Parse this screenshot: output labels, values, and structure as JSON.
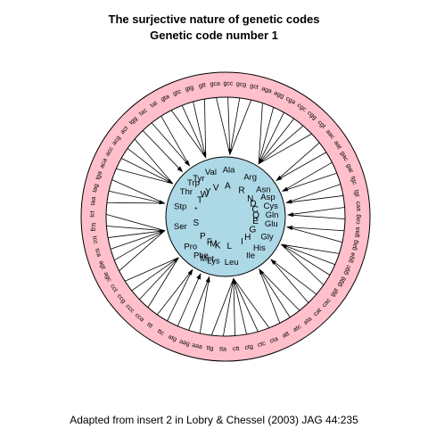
{
  "title": "The surjective nature of genetic codes",
  "subtitle": "Genetic code number 1",
  "caption": "Adapted from insert 2 in Lobry & Chessel (2003) JAG 44:235",
  "colors": {
    "outer_ring": "#ffc0cb",
    "inner_disc": "#add8e6",
    "line": "#000000"
  },
  "codons": [
    "gca",
    "gcc",
    "gcg",
    "gct",
    "aga",
    "agg",
    "cga",
    "cgc",
    "cgg",
    "cgt",
    "aac",
    "aat",
    "gac",
    "gat",
    "tgc",
    "tgt",
    "caa",
    "cag",
    "gaa",
    "gag",
    "gga",
    "ggc",
    "ggg",
    "ggt",
    "cac",
    "cat",
    "ata",
    "atc",
    "att",
    "cta",
    "ctc",
    "ctg",
    "ctt",
    "tta",
    "ttg",
    "aaa",
    "aag",
    "atg",
    "ttc",
    "ttt",
    "cca",
    "ccc",
    "ccg",
    "cct",
    "agc",
    "agt",
    "tca",
    "tcc",
    "tcg",
    "tct",
    "taa",
    "tag",
    "tga",
    "aca",
    "acc",
    "acg",
    "act",
    "tgg",
    "tac",
    "tat",
    "gta",
    "gtc",
    "gtg",
    "gtt"
  ],
  "amino_acids": [
    {
      "code": "Ala",
      "letter": "A",
      "codons": [
        "gca",
        "gcc",
        "gcg",
        "gct"
      ]
    },
    {
      "code": "Arg",
      "letter": "R",
      "codons": [
        "aga",
        "agg",
        "cga",
        "cgc",
        "cgg",
        "cgt"
      ]
    },
    {
      "code": "Asn",
      "letter": "N",
      "codons": [
        "aac",
        "aat"
      ]
    },
    {
      "code": "Asp",
      "letter": "D",
      "codons": [
        "gac",
        "gat"
      ]
    },
    {
      "code": "Cys",
      "letter": "C",
      "codons": [
        "tgc",
        "tgt"
      ]
    },
    {
      "code": "Gln",
      "letter": "Q",
      "codons": [
        "caa",
        "cag"
      ]
    },
    {
      "code": "Glu",
      "letter": "E",
      "codons": [
        "gaa",
        "gag"
      ]
    },
    {
      "code": "Gly",
      "letter": "G",
      "codons": [
        "gga",
        "ggc",
        "ggg",
        "ggt"
      ]
    },
    {
      "code": "His",
      "letter": "H",
      "codons": [
        "cac",
        "cat"
      ]
    },
    {
      "code": "Ile",
      "letter": "I",
      "codons": [
        "ata",
        "atc",
        "att"
      ]
    },
    {
      "code": "Leu",
      "letter": "L",
      "codons": [
        "cta",
        "ctc",
        "ctg",
        "ctt",
        "tta",
        "ttg"
      ]
    },
    {
      "code": "Lys",
      "letter": "K",
      "codons": [
        "aaa",
        "aag"
      ]
    },
    {
      "code": "Met",
      "letter": "M",
      "codons": [
        "atg"
      ]
    },
    {
      "code": "Phe",
      "letter": "F",
      "codons": [
        "ttc",
        "ttt"
      ]
    },
    {
      "code": "Pro",
      "letter": "P",
      "codons": [
        "cca",
        "ccc",
        "ccg",
        "cct"
      ]
    },
    {
      "code": "Ser",
      "letter": "S",
      "codons": [
        "agc",
        "agt",
        "tca",
        "tcc",
        "tcg",
        "tct"
      ]
    },
    {
      "code": "Stp",
      "letter": "*",
      "codons": [
        "taa",
        "tag",
        "tga"
      ]
    },
    {
      "code": "Thr",
      "letter": "T",
      "codons": [
        "aca",
        "acc",
        "acg",
        "act"
      ]
    },
    {
      "code": "Trp",
      "letter": "W",
      "codons": [
        "tgg"
      ]
    },
    {
      "code": "Tyr",
      "letter": "Y",
      "codons": [
        "tac",
        "tat"
      ]
    },
    {
      "code": "Val",
      "letter": "V",
      "codons": [
        "gta",
        "gtc",
        "gtg",
        "gtt"
      ]
    }
  ]
}
